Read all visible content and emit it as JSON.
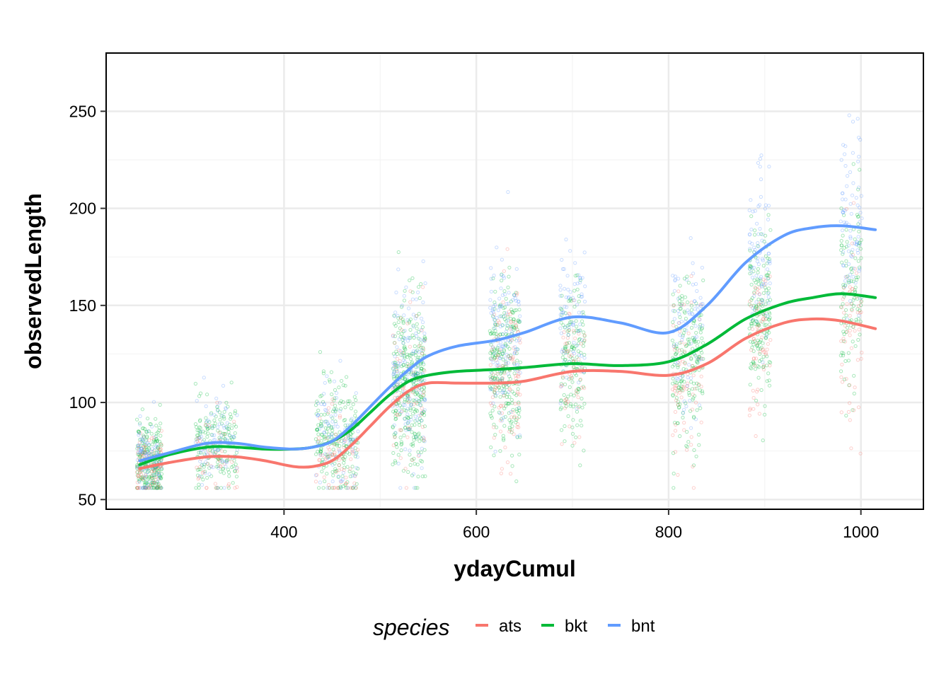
{
  "chart_data": {
    "type": "scatter",
    "xlabel": "ydayCumul",
    "ylabel": "observedLength",
    "xlim": [
      215,
      1065
    ],
    "ylim": [
      45,
      280
    ],
    "xticks": [
      400,
      600,
      800,
      1000
    ],
    "yticks": [
      50,
      100,
      150,
      200,
      250
    ],
    "grid": true,
    "legend": {
      "title": "species",
      "position": "bottom"
    },
    "point_clusters_x": [
      260,
      330,
      455,
      530,
      630,
      700,
      820,
      895,
      990
    ],
    "series": [
      {
        "name": "ats",
        "color": "#F8766D",
        "smooth_x": [
          250,
          280,
          320,
          350,
          380,
          410,
          430,
          450,
          470,
          490,
          510,
          530,
          550,
          580,
          620,
          650,
          700,
          750,
          800,
          840,
          880,
          920,
          950,
          980,
          1015
        ],
        "smooth_y": [
          66,
          69,
          72,
          72,
          70,
          67,
          67,
          70,
          78,
          88,
          98,
          106,
          110,
          110,
          110,
          111,
          116,
          116,
          114,
          120,
          133,
          141,
          143,
          142,
          138
        ],
        "cluster_means": [
          66,
          70,
          70,
          104,
          110,
          116,
          115,
          135,
          140
        ]
      },
      {
        "name": "bkt",
        "color": "#00BA38",
        "smooth_x": [
          250,
          280,
          320,
          350,
          380,
          410,
          430,
          450,
          470,
          490,
          510,
          530,
          550,
          580,
          620,
          650,
          700,
          750,
          800,
          840,
          880,
          920,
          950,
          980,
          1015
        ],
        "smooth_y": [
          68,
          73,
          77,
          77,
          76,
          76,
          77,
          80,
          86,
          95,
          104,
          111,
          114,
          116,
          117,
          118,
          120,
          119,
          121,
          130,
          143,
          151,
          154,
          156,
          154
        ],
        "cluster_means": [
          70,
          77,
          80,
          108,
          117,
          120,
          120,
          145,
          155
        ]
      },
      {
        "name": "bnt",
        "color": "#619CFF",
        "smooth_x": [
          250,
          280,
          320,
          350,
          380,
          410,
          430,
          450,
          470,
          490,
          510,
          530,
          550,
          580,
          620,
          650,
          700,
          750,
          800,
          840,
          880,
          920,
          950,
          980,
          1015
        ],
        "smooth_y": [
          70,
          74,
          79,
          79,
          77,
          76,
          77,
          80,
          88,
          98,
          108,
          117,
          124,
          129,
          132,
          136,
          144,
          141,
          136,
          150,
          172,
          186,
          190,
          191,
          189
        ],
        "cluster_means": [
          72,
          80,
          82,
          115,
          130,
          143,
          135,
          175,
          190
        ]
      }
    ]
  }
}
